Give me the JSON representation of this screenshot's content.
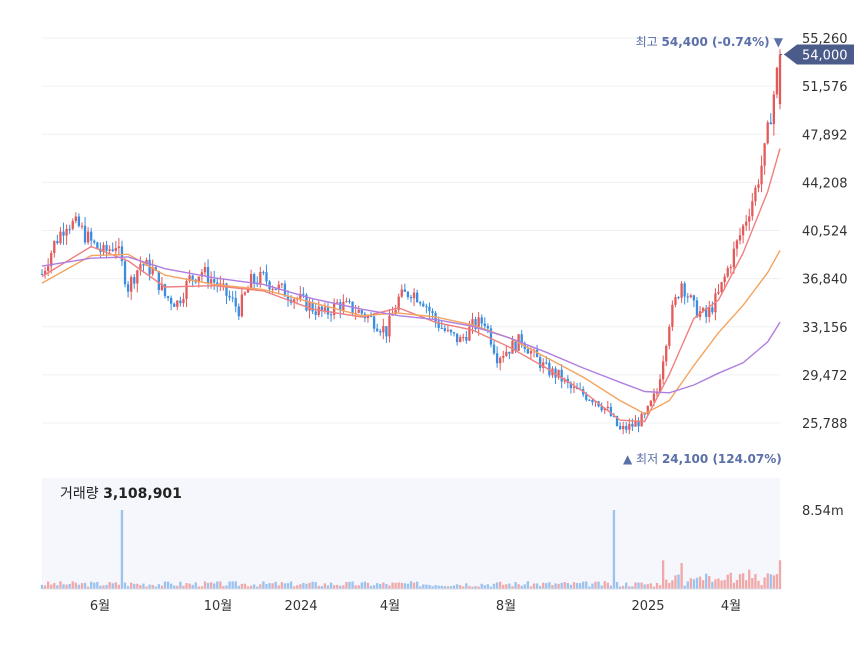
{
  "chart_data": {
    "type": "candlestick",
    "price_axis": {
      "ticks": [
        25788,
        29472,
        33156,
        36840,
        40524,
        44208,
        47892,
        51576,
        55260
      ],
      "tick_labels": [
        "25,788",
        "29,472",
        "33,156",
        "36,840",
        "40,524",
        "44,208",
        "47,892",
        "51,576",
        "55,260"
      ],
      "range": [
        23500,
        56000
      ]
    },
    "x_axis": {
      "labels": [
        "6월",
        "10월",
        "2024",
        "4월",
        "8월",
        "2025",
        "4월"
      ]
    },
    "current_price": {
      "value": 54000,
      "label": "54,000"
    },
    "high_annotation": {
      "prefix": "최고",
      "value": "54,400",
      "pct": "(-0.74%)",
      "marker": "▼"
    },
    "low_annotation": {
      "marker": "▲",
      "prefix": "최저",
      "value": "24,100",
      "pct": "(124.07%)"
    },
    "price_path": [
      [
        0,
        37200
      ],
      [
        2,
        39500
      ],
      [
        4,
        41200
      ],
      [
        6,
        40800
      ],
      [
        8,
        39600
      ],
      [
        10,
        38800
      ],
      [
        12,
        39500
      ],
      [
        14,
        36200
      ],
      [
        16,
        38000
      ],
      [
        18,
        37500
      ],
      [
        20,
        35500
      ],
      [
        22,
        35000
      ],
      [
        24,
        36800
      ],
      [
        26,
        37400
      ],
      [
        28,
        36600
      ],
      [
        30,
        35600
      ],
      [
        32,
        34500
      ],
      [
        34,
        36600
      ],
      [
        36,
        36900
      ],
      [
        38,
        36200
      ],
      [
        40,
        35700
      ],
      [
        42,
        35200
      ],
      [
        44,
        34600
      ],
      [
        46,
        34100
      ],
      [
        48,
        34900
      ],
      [
        50,
        34600
      ],
      [
        52,
        34200
      ],
      [
        54,
        33600
      ],
      [
        56,
        32800
      ],
      [
        58,
        35300
      ],
      [
        60,
        35900
      ],
      [
        62,
        35200
      ],
      [
        64,
        33600
      ],
      [
        66,
        32600
      ],
      [
        68,
        32100
      ],
      [
        70,
        33200
      ],
      [
        72,
        33600
      ],
      [
        74,
        30900
      ],
      [
        76,
        31500
      ],
      [
        78,
        32200
      ],
      [
        80,
        30900
      ],
      [
        82,
        29900
      ],
      [
        84,
        29400
      ],
      [
        86,
        28400
      ],
      [
        88,
        28000
      ],
      [
        90,
        27600
      ],
      [
        92,
        26700
      ],
      [
        94,
        25200
      ],
      [
        96,
        25600
      ],
      [
        98,
        26200
      ],
      [
        100,
        28200
      ],
      [
        102,
        33600
      ],
      [
        104,
        36600
      ],
      [
        106,
        34600
      ],
      [
        108,
        33900
      ],
      [
        110,
        35600
      ],
      [
        112,
        38200
      ],
      [
        114,
        40800
      ],
      [
        116,
        43600
      ],
      [
        117.5,
        46500
      ],
      [
        118.5,
        49500
      ],
      [
        120,
        54000
      ]
    ],
    "period_count": 120,
    "moving_averages": [
      {
        "color": "#f08080",
        "values": [
          [
            0,
            37000
          ],
          [
            8,
            39300
          ],
          [
            14,
            38200
          ],
          [
            20,
            36200
          ],
          [
            28,
            36300
          ],
          [
            36,
            35900
          ],
          [
            44,
            34500
          ],
          [
            52,
            33900
          ],
          [
            58,
            34600
          ],
          [
            64,
            33500
          ],
          [
            70,
            32900
          ],
          [
            76,
            31600
          ],
          [
            82,
            30000
          ],
          [
            88,
            28200
          ],
          [
            94,
            26000
          ],
          [
            98,
            25900
          ],
          [
            102,
            29500
          ],
          [
            106,
            33800
          ],
          [
            110,
            35200
          ],
          [
            114,
            38800
          ],
          [
            118,
            43500
          ],
          [
            120,
            46800
          ]
        ]
      },
      {
        "color": "#f4a460",
        "values": [
          [
            0,
            36500
          ],
          [
            8,
            38600
          ],
          [
            14,
            38700
          ],
          [
            20,
            37100
          ],
          [
            28,
            36400
          ],
          [
            36,
            36000
          ],
          [
            44,
            35000
          ],
          [
            52,
            34000
          ],
          [
            58,
            34200
          ],
          [
            64,
            33900
          ],
          [
            70,
            33300
          ],
          [
            76,
            32300
          ],
          [
            82,
            30800
          ],
          [
            88,
            29300
          ],
          [
            94,
            27500
          ],
          [
            98,
            26500
          ],
          [
            102,
            27500
          ],
          [
            106,
            30200
          ],
          [
            110,
            32700
          ],
          [
            114,
            34800
          ],
          [
            118,
            37300
          ],
          [
            120,
            39000
          ]
        ]
      },
      {
        "color": "#b07ee0",
        "values": [
          [
            0,
            37800
          ],
          [
            8,
            38400
          ],
          [
            14,
            38500
          ],
          [
            20,
            37600
          ],
          [
            28,
            36900
          ],
          [
            36,
            36400
          ],
          [
            44,
            35300
          ],
          [
            52,
            34500
          ],
          [
            58,
            34000
          ],
          [
            64,
            33700
          ],
          [
            70,
            33200
          ],
          [
            76,
            32300
          ],
          [
            82,
            31200
          ],
          [
            88,
            30000
          ],
          [
            94,
            28900
          ],
          [
            98,
            28200
          ],
          [
            102,
            28100
          ],
          [
            106,
            28700
          ],
          [
            110,
            29600
          ],
          [
            114,
            30400
          ],
          [
            118,
            32000
          ],
          [
            120,
            33500
          ]
        ]
      }
    ],
    "volume": {
      "label": "거래량",
      "last_value": "3,108,901",
      "axis_tick": "8.54m",
      "axis_tick_value": 8540000,
      "range": [
        0,
        12000000
      ],
      "spikes": [
        [
          13,
          8540000
        ],
        [
          93,
          8540000
        ],
        [
          101,
          3100000
        ],
        [
          104,
          2800000
        ],
        [
          120,
          3108901
        ]
      ]
    },
    "colors": {
      "up": "#e35a5a",
      "down": "#3a8de0",
      "current_price_tag": "#4b5b8a",
      "annotation": "#5b6fa8",
      "volume_bg": "#f5f7fc"
    }
  }
}
